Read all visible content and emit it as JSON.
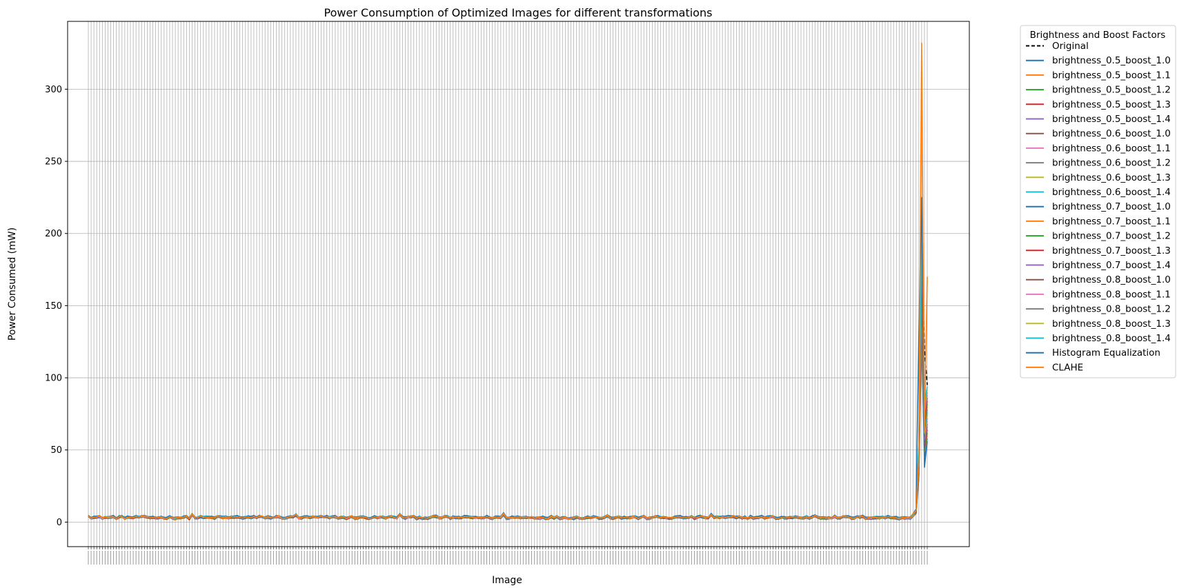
{
  "chart_data": {
    "type": "line",
    "title": "Power Consumption of Optimized Images for different transformations",
    "xlabel": "Image",
    "ylabel": "Power Consumed (mW)",
    "ylim": [
      -17,
      347
    ],
    "yticks": [
      0,
      50,
      100,
      150,
      200,
      250,
      300
    ],
    "grid": true,
    "x_category_count": 300,
    "legend_placement": "outside-upper-right",
    "legend_title": "Brightness and Boost Factors",
    "series": [
      {
        "name": "Original",
        "color": "#000000",
        "dash": true,
        "base": 3.2,
        "tail": [
          5,
          8,
          40,
          190,
          120,
          95
        ]
      },
      {
        "name": "brightness_0.5_boost_1.0",
        "color": "#1f77b4",
        "base": 2.6,
        "tail": [
          4,
          6,
          30,
          130,
          45,
          58
        ]
      },
      {
        "name": "brightness_0.5_boost_1.1",
        "color": "#ff7f0e",
        "base": 2.7,
        "tail": [
          4,
          6,
          32,
          135,
          48,
          60
        ]
      },
      {
        "name": "brightness_0.5_boost_1.2",
        "color": "#2ca02c",
        "base": 2.8,
        "tail": [
          4,
          6,
          34,
          140,
          50,
          62
        ]
      },
      {
        "name": "brightness_0.5_boost_1.3",
        "color": "#d62728",
        "base": 2.9,
        "tail": [
          4,
          6,
          36,
          145,
          52,
          64
        ]
      },
      {
        "name": "brightness_0.5_boost_1.4",
        "color": "#9467bd",
        "base": 3.0,
        "tail": [
          4,
          7,
          38,
          150,
          54,
          66
        ]
      },
      {
        "name": "brightness_0.6_boost_1.0",
        "color": "#8c564b",
        "base": 2.9,
        "tail": [
          4,
          6,
          36,
          150,
          55,
          68
        ]
      },
      {
        "name": "brightness_0.6_boost_1.1",
        "color": "#e377c2",
        "base": 3.0,
        "tail": [
          4,
          7,
          38,
          155,
          57,
          70
        ]
      },
      {
        "name": "brightness_0.6_boost_1.2",
        "color": "#7f7f7f",
        "base": 3.1,
        "tail": [
          4,
          7,
          40,
          160,
          59,
          72
        ]
      },
      {
        "name": "brightness_0.6_boost_1.3",
        "color": "#bcbd22",
        "base": 3.2,
        "tail": [
          4,
          7,
          42,
          165,
          61,
          74
        ]
      },
      {
        "name": "brightness_0.6_boost_1.4",
        "color": "#17becf",
        "base": 3.3,
        "tail": [
          5,
          7,
          44,
          170,
          63,
          76
        ]
      },
      {
        "name": "brightness_0.7_boost_1.0",
        "color": "#1f77b4",
        "base": 3.1,
        "tail": [
          4,
          7,
          40,
          170,
          64,
          78
        ]
      },
      {
        "name": "brightness_0.7_boost_1.1",
        "color": "#ff7f0e",
        "base": 3.2,
        "tail": [
          4,
          7,
          42,
          175,
          66,
          80
        ]
      },
      {
        "name": "brightness_0.7_boost_1.2",
        "color": "#2ca02c",
        "base": 3.3,
        "tail": [
          5,
          7,
          44,
          180,
          68,
          82
        ]
      },
      {
        "name": "brightness_0.7_boost_1.3",
        "color": "#d62728",
        "base": 3.4,
        "tail": [
          5,
          8,
          46,
          185,
          70,
          84
        ]
      },
      {
        "name": "brightness_0.7_boost_1.4",
        "color": "#9467bd",
        "base": 3.5,
        "tail": [
          5,
          8,
          48,
          190,
          72,
          86
        ]
      },
      {
        "name": "brightness_0.8_boost_1.0",
        "color": "#8c564b",
        "base": 3.3,
        "tail": [
          5,
          7,
          46,
          190,
          74,
          86
        ]
      },
      {
        "name": "brightness_0.8_boost_1.1",
        "color": "#e377c2",
        "base": 3.4,
        "tail": [
          5,
          8,
          48,
          195,
          76,
          88
        ]
      },
      {
        "name": "brightness_0.8_boost_1.2",
        "color": "#7f7f7f",
        "base": 3.5,
        "tail": [
          5,
          8,
          50,
          200,
          78,
          90
        ]
      },
      {
        "name": "brightness_0.8_boost_1.3",
        "color": "#bcbd22",
        "base": 3.6,
        "tail": [
          5,
          8,
          52,
          205,
          80,
          92
        ]
      },
      {
        "name": "brightness_0.8_boost_1.4",
        "color": "#17becf",
        "base": 3.7,
        "tail": [
          5,
          8,
          54,
          210,
          82,
          94
        ]
      },
      {
        "name": "Histogram Equalization",
        "color": "#1f77b4",
        "base": 3.8,
        "tail": [
          6,
          9,
          130,
          225,
          38,
          56
        ]
      },
      {
        "name": "CLAHE",
        "color": "#ff7f0e",
        "base": 3.4,
        "tail": [
          6,
          8,
          45,
          332,
          62,
          170
        ]
      }
    ]
  }
}
